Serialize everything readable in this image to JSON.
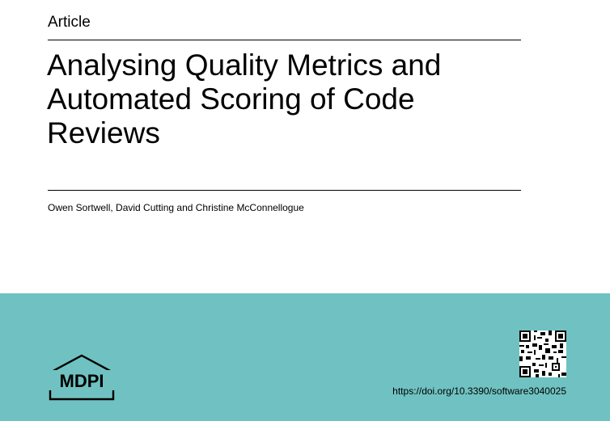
{
  "header": {
    "article_type": "Article"
  },
  "paper": {
    "title_lines": [
      "Analysing Quality Metrics and",
      "Automated Scoring of Code",
      "Reviews"
    ],
    "authors": "Owen Sortwell, David Cutting and Christine McConnellogue"
  },
  "footer": {
    "publisher_logo": "MDPI",
    "qr_icon": "qr-code-icon",
    "doi_link": "https://doi.org/10.3390/software3040025",
    "band_color": "#6fc2c1"
  }
}
